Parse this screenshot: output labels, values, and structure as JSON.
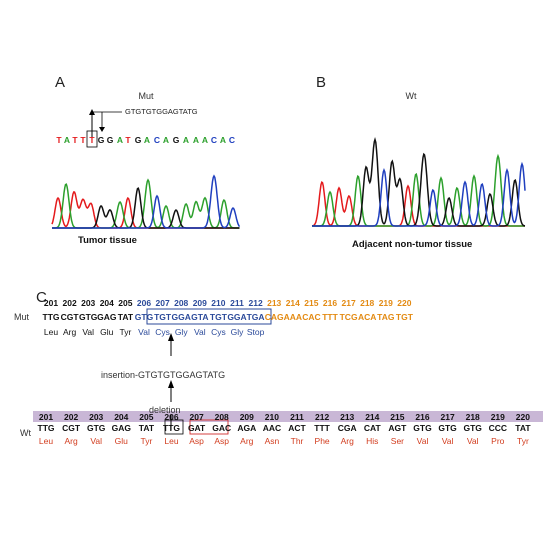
{
  "panelA": {
    "letter": "A",
    "title": "Mut",
    "insertion": "GTGTGTGGAGTATG",
    "bases": [
      {
        "b": "T",
        "c": "red"
      },
      {
        "b": "A",
        "c": "green"
      },
      {
        "b": "T",
        "c": "red"
      },
      {
        "b": "T",
        "c": "red"
      },
      {
        "b": "T",
        "c": "red"
      },
      {
        "b": "G",
        "c": "black"
      },
      {
        "b": "G",
        "c": "black"
      },
      {
        "b": "A",
        "c": "green"
      },
      {
        "b": "T",
        "c": "red"
      },
      {
        "b": "G",
        "c": "black"
      },
      {
        "b": "A",
        "c": "green"
      },
      {
        "b": "C",
        "c": "blue"
      },
      {
        "b": "A",
        "c": "green"
      },
      {
        "b": "G",
        "c": "black"
      },
      {
        "b": "A",
        "c": "green"
      },
      {
        "b": "A",
        "c": "green"
      },
      {
        "b": "A",
        "c": "green"
      },
      {
        "b": "C",
        "c": "blue"
      },
      {
        "b": "A",
        "c": "green"
      },
      {
        "b": "C",
        "c": "blue"
      }
    ],
    "caption": "Tumor tissue"
  },
  "panelB": {
    "letter": "B",
    "title": "Wt",
    "caption": "Adjacent non-tumor tissue"
  },
  "panelC": {
    "letter": "C",
    "mut_label": "Mut",
    "wt_label": "Wt",
    "insertion_label": "insertion-GTGTGTGGAGTATG",
    "deletion_label": "deletion",
    "mut_rows": [
      {
        "n": "201",
        "codon": "TTG",
        "aa": "Leu",
        "style": "black"
      },
      {
        "n": "202",
        "codon": "CGT",
        "aa": "Arg",
        "style": "black"
      },
      {
        "n": "203",
        "codon": "GTG",
        "aa": "Val",
        "style": "black"
      },
      {
        "n": "204",
        "codon": "GAG",
        "aa": "Glu",
        "style": "black"
      },
      {
        "n": "205",
        "codon": "TAT",
        "aa": "Tyr",
        "style": "black"
      },
      {
        "n": "206",
        "codon": "GTG",
        "aa": "Val",
        "style": "blue"
      },
      {
        "n": "207",
        "codon": "TGT",
        "aa": "Cys",
        "style": "blue"
      },
      {
        "n": "208",
        "codon": "GGA",
        "aa": "Gly",
        "style": "blue"
      },
      {
        "n": "209",
        "codon": "GTA",
        "aa": "Val",
        "style": "blue"
      },
      {
        "n": "210",
        "codon": "TGT",
        "aa": "Cys",
        "style": "blue"
      },
      {
        "n": "211",
        "codon": "GGA",
        "aa": "Gly",
        "style": "blue"
      },
      {
        "n": "212",
        "codon": "TGA",
        "aa": "Stop",
        "style": "blue"
      },
      {
        "n": "213",
        "codon": "CAG",
        "aa": "",
        "style": "orange"
      },
      {
        "n": "214",
        "codon": "AAA",
        "aa": "",
        "style": "orange"
      },
      {
        "n": "215",
        "codon": "CAC",
        "aa": "",
        "style": "orange"
      },
      {
        "n": "216",
        "codon": "TTT",
        "aa": "",
        "style": "orange"
      },
      {
        "n": "217",
        "codon": "TCG",
        "aa": "",
        "style": "orange"
      },
      {
        "n": "218",
        "codon": "ACA",
        "aa": "",
        "style": "orange"
      },
      {
        "n": "219",
        "codon": "TAG",
        "aa": "",
        "style": "orange"
      },
      {
        "n": "220",
        "codon": "TGT",
        "aa": "",
        "style": "orange"
      }
    ],
    "wt_rows": [
      {
        "n": "201",
        "codon": "TTG",
        "aa": "Leu"
      },
      {
        "n": "202",
        "codon": "CGT",
        "aa": "Arg"
      },
      {
        "n": "203",
        "codon": "GTG",
        "aa": "Val"
      },
      {
        "n": "204",
        "codon": "GAG",
        "aa": "Glu"
      },
      {
        "n": "205",
        "codon": "TAT",
        "aa": "Tyr"
      },
      {
        "n": "206",
        "codon": "TTG",
        "aa": "Leu"
      },
      {
        "n": "207",
        "codon": "GAT",
        "aa": "Asp"
      },
      {
        "n": "208",
        "codon": "GAC",
        "aa": "Asp"
      },
      {
        "n": "209",
        "codon": "AGA",
        "aa": "Arg"
      },
      {
        "n": "210",
        "codon": "AAC",
        "aa": "Asn"
      },
      {
        "n": "211",
        "codon": "ACT",
        "aa": "Thr"
      },
      {
        "n": "212",
        "codon": "TTT",
        "aa": "Phe"
      },
      {
        "n": "213",
        "codon": "CGA",
        "aa": "Arg"
      },
      {
        "n": "214",
        "codon": "CAT",
        "aa": "His"
      },
      {
        "n": "215",
        "codon": "AGT",
        "aa": "Ser"
      },
      {
        "n": "216",
        "codon": "GTG",
        "aa": "Val"
      },
      {
        "n": "217",
        "codon": "GTG",
        "aa": "Val"
      },
      {
        "n": "218",
        "codon": "GTG",
        "aa": "Val"
      },
      {
        "n": "219",
        "codon": "CCC",
        "aa": "Pro"
      },
      {
        "n": "220",
        "codon": "TAT",
        "aa": "Tyr"
      }
    ]
  },
  "colors": {
    "red": "#e41a1c",
    "green": "#2ca02c",
    "black": "#111111",
    "blue": "#1f3fbf",
    "codon_blue": "#2b4a9a",
    "codon_orange": "#e38a12",
    "wt_aa": "#d23c1e",
    "wt_band": "#c9b7d6",
    "mut_box": "#2b4a9a",
    "del_box": "#d22c2c"
  }
}
